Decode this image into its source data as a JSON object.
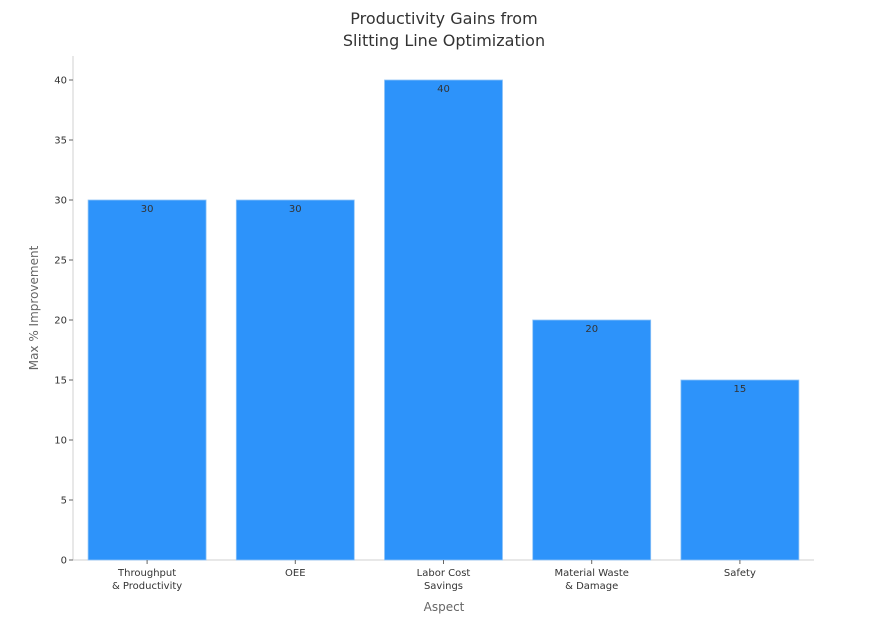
{
  "chart_data": {
    "type": "bar",
    "title_lines": [
      "Productivity Gains from",
      "Slitting Line Optimization"
    ],
    "xlabel": "Aspect",
    "ylabel": "Max % Improvement",
    "categories": [
      [
        "Throughput",
        "& Productivity"
      ],
      [
        "OEE"
      ],
      [
        "Labor Cost",
        "Savings"
      ],
      [
        "Material Waste",
        "& Damage"
      ],
      [
        "Safety"
      ]
    ],
    "values": [
      30,
      30,
      40,
      20,
      15
    ],
    "ylim": [
      0,
      42
    ],
    "yticks": [
      0,
      5,
      10,
      15,
      20,
      25,
      30,
      35,
      40
    ],
    "grid": false,
    "bar_color": "#2d93fa"
  }
}
